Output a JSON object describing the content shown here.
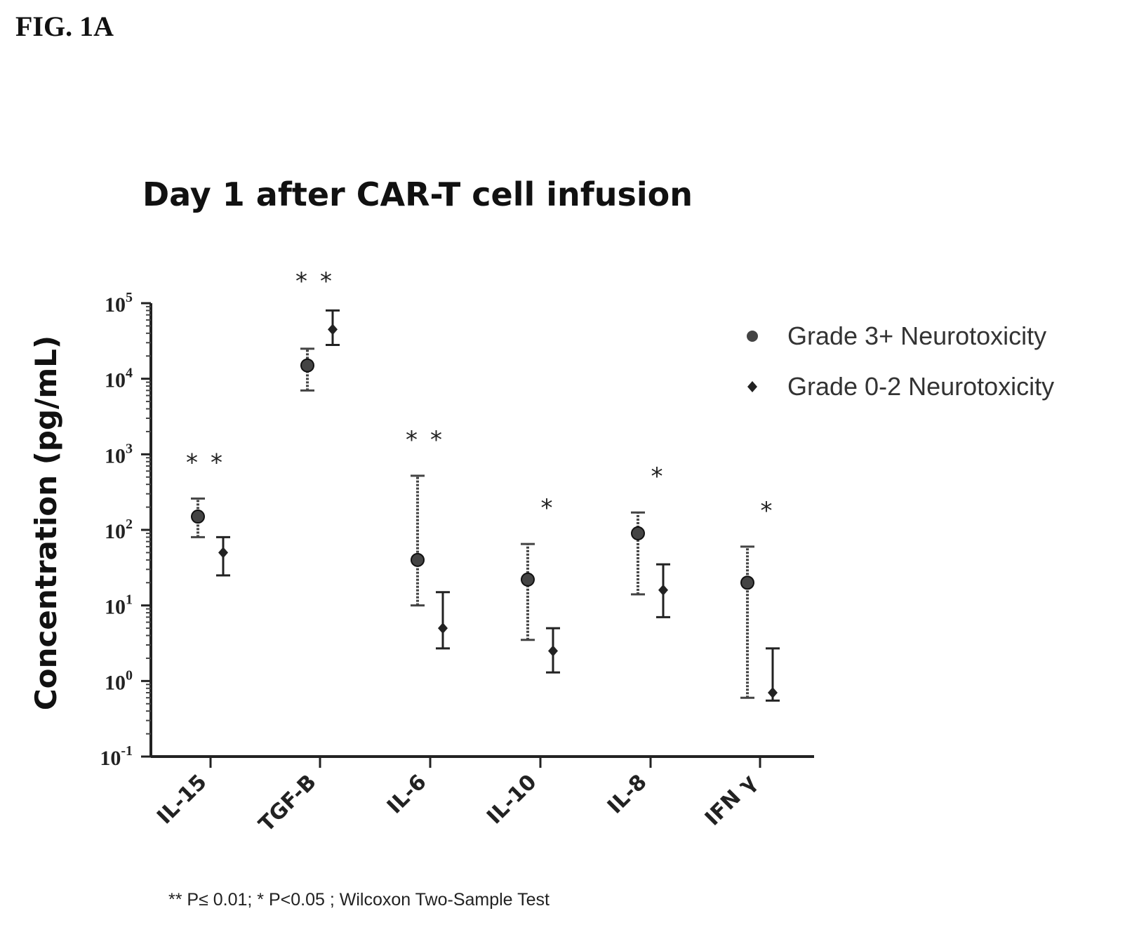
{
  "figure_label": "FIG. 1A",
  "footnote": "** P≤ 0.01; * P<0.05 ; Wilcoxon Two-Sample Test",
  "chart_data": {
    "type": "scatter",
    "title": "Day 1 after CAR-T cell infusion",
    "ylabel": "Concentration (pg/mL)",
    "yscale": "log",
    "ylim": [
      0.1,
      100000
    ],
    "y_ticks": [
      {
        "value": 0.1,
        "base": "10",
        "exp": "-1"
      },
      {
        "value": 1,
        "base": "10",
        "exp": "0"
      },
      {
        "value": 10,
        "base": "10",
        "exp": "1"
      },
      {
        "value": 100,
        "base": "10",
        "exp": "2"
      },
      {
        "value": 1000,
        "base": "10",
        "exp": "3"
      },
      {
        "value": 10000,
        "base": "10",
        "exp": "4"
      },
      {
        "value": 100000,
        "base": "10",
        "exp": "5"
      }
    ],
    "categories": [
      "IL-15",
      "TGF-B",
      "IL-6",
      "IL-10",
      "IL-8",
      "IFN γ"
    ],
    "legend_position": "right",
    "series": [
      {
        "name": "Grade 3+ Neurotoxicity",
        "color": "#444444",
        "marker": "circle",
        "values": [
          150,
          15000,
          40,
          22,
          90,
          20
        ],
        "err_low": [
          80,
          7000,
          10,
          3.5,
          14,
          0.6
        ],
        "err_high": [
          260,
          25000,
          520,
          65,
          170,
          60
        ]
      },
      {
        "name": "Grade 0-2 Neurotoxicity",
        "color": "#222222",
        "marker": "diamond",
        "values": [
          50,
          45000,
          5,
          2.5,
          16,
          0.7
        ],
        "err_low": [
          25,
          28000,
          2.7,
          1.3,
          7,
          0.55
        ],
        "err_high": [
          80,
          80000,
          15,
          5,
          35,
          2.7
        ]
      }
    ],
    "significance": [
      "**",
      "**",
      "**",
      "*",
      "*",
      "*"
    ]
  }
}
